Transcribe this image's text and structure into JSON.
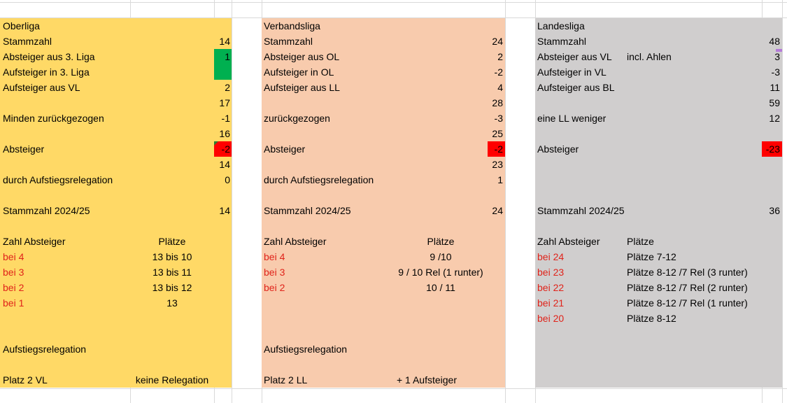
{
  "colors": {
    "oberliga_bg": "#ffd966",
    "verbandsliga_bg": "#f8cbad",
    "landesliga_bg": "#d0cece",
    "highlight_green": "#00b050",
    "highlight_red": "#ff0000",
    "relegation_text": "#e0231a"
  },
  "oberliga": {
    "title": "Oberliga",
    "rows": [
      {
        "label": "Stammzahl",
        "value": "14"
      },
      {
        "label": "Absteiger aus 3. Liga",
        "value": "1"
      },
      {
        "label": "Aufsteiger in 3. Liga",
        "value": ""
      },
      {
        "label": "Aufsteiger aus VL",
        "value": "2"
      },
      {
        "label": "",
        "value": "17"
      },
      {
        "label": "Minden zurückgezogen",
        "value": "-1"
      },
      {
        "label": "",
        "value": "16"
      },
      {
        "label": "Absteiger",
        "value": "-2"
      },
      {
        "label": "",
        "value": "14"
      },
      {
        "label": "durch Aufstiegsrelegation",
        "value": "0"
      },
      {
        "label": "",
        "value": ""
      },
      {
        "label": "Stammzahl 2024/25",
        "value": "14"
      }
    ],
    "table_header": {
      "left": "Zahl Absteiger",
      "right": "Plätze"
    },
    "table": [
      {
        "left": "bei 4",
        "right": "13 bis 10"
      },
      {
        "left": "bei 3",
        "right": "13 bis 11"
      },
      {
        "left": "bei 2",
        "right": "13 bis 12"
      },
      {
        "left": "bei 1",
        "right": "13"
      }
    ],
    "relegation_title": "Aufstiegsrelegation",
    "relegation": {
      "left": "Platz 2 VL",
      "right": "keine Relegation"
    }
  },
  "verbandsliga": {
    "title": "Verbandsliga",
    "rows": [
      {
        "label": "Stammzahl",
        "value": "24"
      },
      {
        "label": "Absteiger aus OL",
        "value": "2"
      },
      {
        "label": "Aufsteiger in OL",
        "value": "-2"
      },
      {
        "label": "Aufsteiger aus LL",
        "value": "4"
      },
      {
        "label": "",
        "value": "28"
      },
      {
        "label": "zurückgezogen",
        "value": "-3"
      },
      {
        "label": "",
        "value": "25"
      },
      {
        "label": "Absteiger",
        "value": "-2"
      },
      {
        "label": "",
        "value": "23"
      },
      {
        "label": "durch Aufstiegsrelegation",
        "value": "1"
      },
      {
        "label": "",
        "value": ""
      },
      {
        "label": "Stammzahl 2024/25",
        "value": "24"
      }
    ],
    "table_header": {
      "left": "Zahl Absteiger",
      "right": "Plätze"
    },
    "table": [
      {
        "left": "bei 4",
        "right": "9 /10"
      },
      {
        "left": "bei 3",
        "right": "9 / 10 Rel (1 runter)"
      },
      {
        "left": "bei 2",
        "right": "10 / 11"
      }
    ],
    "relegation_title": "Aufstiegsrelegation",
    "relegation": {
      "left": "Platz 2 LL",
      "right": "+ 1 Aufsteiger"
    }
  },
  "landesliga": {
    "title": "Landesliga",
    "rows": [
      {
        "label": "Stammzahl",
        "value": "48",
        "note": ""
      },
      {
        "label": "Absteiger aus VL",
        "value": "3",
        "note": "incl. Ahlen"
      },
      {
        "label": "Aufsteiger in VL",
        "value": "-3",
        "note": ""
      },
      {
        "label": "Aufsteiger aus BL",
        "value": "11",
        "note": ""
      },
      {
        "label": "",
        "value": "59",
        "note": ""
      },
      {
        "label": "eine LL weniger",
        "value": "12",
        "note": ""
      },
      {
        "label": "",
        "value": "",
        "note": ""
      },
      {
        "label": "Absteiger",
        "value": "-23",
        "note": ""
      },
      {
        "label": "",
        "value": "",
        "note": ""
      },
      {
        "label": "",
        "value": "",
        "note": ""
      },
      {
        "label": "",
        "value": "",
        "note": ""
      },
      {
        "label": "Stammzahl 2024/25",
        "value": "36",
        "note": ""
      }
    ],
    "table_header": {
      "left": "Zahl Absteiger",
      "right": "Plätze"
    },
    "table": [
      {
        "left": "bei 24",
        "right": "Plätze 7-12"
      },
      {
        "left": "bei 23",
        "right": "Plätze 8-12 /7 Rel (3 runter)"
      },
      {
        "left": "bei 22",
        "right": "Plätze 8-12 /7 Rel (2 runter)"
      },
      {
        "left": "bei 21",
        "right": "Plätze 8-12 /7 Rel (1 runter)"
      },
      {
        "left": "bei 20",
        "right": "Plätze 8-12"
      }
    ]
  }
}
